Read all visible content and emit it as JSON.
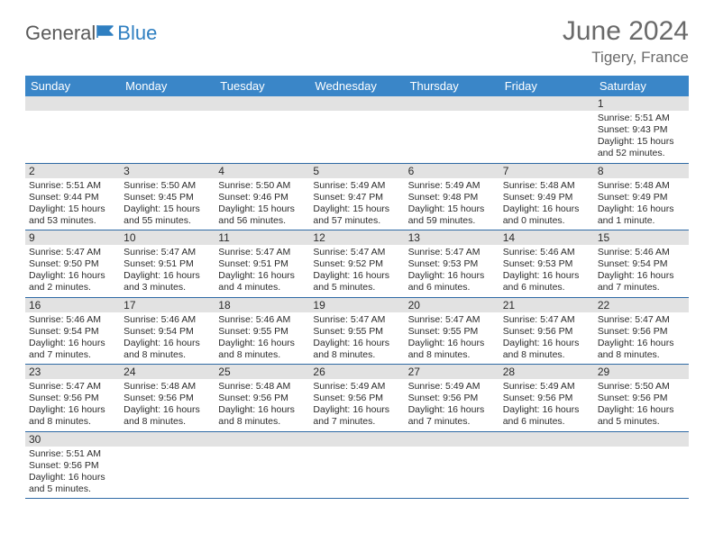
{
  "logo": {
    "general": "General",
    "blue": "Blue"
  },
  "title": "June 2024",
  "location": "Tigery, France",
  "colors": {
    "header_bg": "#3a86c8",
    "header_text": "#ffffff",
    "day_num_bg": "#e2e2e2",
    "row_border": "#2f6aa5",
    "text": "#2b2b2b",
    "logo_gray": "#5a5a5a",
    "logo_blue": "#2f7fc1"
  },
  "weekdays": [
    "Sunday",
    "Monday",
    "Tuesday",
    "Wednesday",
    "Thursday",
    "Friday",
    "Saturday"
  ],
  "weeks": [
    {
      "days": [
        null,
        null,
        null,
        null,
        null,
        null,
        {
          "n": "1",
          "sunrise": "Sunrise: 5:51 AM",
          "sunset": "Sunset: 9:43 PM",
          "daylight": "Daylight: 15 hours and 52 minutes."
        }
      ]
    },
    {
      "days": [
        {
          "n": "2",
          "sunrise": "Sunrise: 5:51 AM",
          "sunset": "Sunset: 9:44 PM",
          "daylight": "Daylight: 15 hours and 53 minutes."
        },
        {
          "n": "3",
          "sunrise": "Sunrise: 5:50 AM",
          "sunset": "Sunset: 9:45 PM",
          "daylight": "Daylight: 15 hours and 55 minutes."
        },
        {
          "n": "4",
          "sunrise": "Sunrise: 5:50 AM",
          "sunset": "Sunset: 9:46 PM",
          "daylight": "Daylight: 15 hours and 56 minutes."
        },
        {
          "n": "5",
          "sunrise": "Sunrise: 5:49 AM",
          "sunset": "Sunset: 9:47 PM",
          "daylight": "Daylight: 15 hours and 57 minutes."
        },
        {
          "n": "6",
          "sunrise": "Sunrise: 5:49 AM",
          "sunset": "Sunset: 9:48 PM",
          "daylight": "Daylight: 15 hours and 59 minutes."
        },
        {
          "n": "7",
          "sunrise": "Sunrise: 5:48 AM",
          "sunset": "Sunset: 9:49 PM",
          "daylight": "Daylight: 16 hours and 0 minutes."
        },
        {
          "n": "8",
          "sunrise": "Sunrise: 5:48 AM",
          "sunset": "Sunset: 9:49 PM",
          "daylight": "Daylight: 16 hours and 1 minute."
        }
      ]
    },
    {
      "days": [
        {
          "n": "9",
          "sunrise": "Sunrise: 5:47 AM",
          "sunset": "Sunset: 9:50 PM",
          "daylight": "Daylight: 16 hours and 2 minutes."
        },
        {
          "n": "10",
          "sunrise": "Sunrise: 5:47 AM",
          "sunset": "Sunset: 9:51 PM",
          "daylight": "Daylight: 16 hours and 3 minutes."
        },
        {
          "n": "11",
          "sunrise": "Sunrise: 5:47 AM",
          "sunset": "Sunset: 9:51 PM",
          "daylight": "Daylight: 16 hours and 4 minutes."
        },
        {
          "n": "12",
          "sunrise": "Sunrise: 5:47 AM",
          "sunset": "Sunset: 9:52 PM",
          "daylight": "Daylight: 16 hours and 5 minutes."
        },
        {
          "n": "13",
          "sunrise": "Sunrise: 5:47 AM",
          "sunset": "Sunset: 9:53 PM",
          "daylight": "Daylight: 16 hours and 6 minutes."
        },
        {
          "n": "14",
          "sunrise": "Sunrise: 5:46 AM",
          "sunset": "Sunset: 9:53 PM",
          "daylight": "Daylight: 16 hours and 6 minutes."
        },
        {
          "n": "15",
          "sunrise": "Sunrise: 5:46 AM",
          "sunset": "Sunset: 9:54 PM",
          "daylight": "Daylight: 16 hours and 7 minutes."
        }
      ]
    },
    {
      "days": [
        {
          "n": "16",
          "sunrise": "Sunrise: 5:46 AM",
          "sunset": "Sunset: 9:54 PM",
          "daylight": "Daylight: 16 hours and 7 minutes."
        },
        {
          "n": "17",
          "sunrise": "Sunrise: 5:46 AM",
          "sunset": "Sunset: 9:54 PM",
          "daylight": "Daylight: 16 hours and 8 minutes."
        },
        {
          "n": "18",
          "sunrise": "Sunrise: 5:46 AM",
          "sunset": "Sunset: 9:55 PM",
          "daylight": "Daylight: 16 hours and 8 minutes."
        },
        {
          "n": "19",
          "sunrise": "Sunrise: 5:47 AM",
          "sunset": "Sunset: 9:55 PM",
          "daylight": "Daylight: 16 hours and 8 minutes."
        },
        {
          "n": "20",
          "sunrise": "Sunrise: 5:47 AM",
          "sunset": "Sunset: 9:55 PM",
          "daylight": "Daylight: 16 hours and 8 minutes."
        },
        {
          "n": "21",
          "sunrise": "Sunrise: 5:47 AM",
          "sunset": "Sunset: 9:56 PM",
          "daylight": "Daylight: 16 hours and 8 minutes."
        },
        {
          "n": "22",
          "sunrise": "Sunrise: 5:47 AM",
          "sunset": "Sunset: 9:56 PM",
          "daylight": "Daylight: 16 hours and 8 minutes."
        }
      ]
    },
    {
      "days": [
        {
          "n": "23",
          "sunrise": "Sunrise: 5:47 AM",
          "sunset": "Sunset: 9:56 PM",
          "daylight": "Daylight: 16 hours and 8 minutes."
        },
        {
          "n": "24",
          "sunrise": "Sunrise: 5:48 AM",
          "sunset": "Sunset: 9:56 PM",
          "daylight": "Daylight: 16 hours and 8 minutes."
        },
        {
          "n": "25",
          "sunrise": "Sunrise: 5:48 AM",
          "sunset": "Sunset: 9:56 PM",
          "daylight": "Daylight: 16 hours and 8 minutes."
        },
        {
          "n": "26",
          "sunrise": "Sunrise: 5:49 AM",
          "sunset": "Sunset: 9:56 PM",
          "daylight": "Daylight: 16 hours and 7 minutes."
        },
        {
          "n": "27",
          "sunrise": "Sunrise: 5:49 AM",
          "sunset": "Sunset: 9:56 PM",
          "daylight": "Daylight: 16 hours and 7 minutes."
        },
        {
          "n": "28",
          "sunrise": "Sunrise: 5:49 AM",
          "sunset": "Sunset: 9:56 PM",
          "daylight": "Daylight: 16 hours and 6 minutes."
        },
        {
          "n": "29",
          "sunrise": "Sunrise: 5:50 AM",
          "sunset": "Sunset: 9:56 PM",
          "daylight": "Daylight: 16 hours and 5 minutes."
        }
      ]
    },
    {
      "days": [
        {
          "n": "30",
          "sunrise": "Sunrise: 5:51 AM",
          "sunset": "Sunset: 9:56 PM",
          "daylight": "Daylight: 16 hours and 5 minutes."
        },
        null,
        null,
        null,
        null,
        null,
        null
      ]
    }
  ]
}
